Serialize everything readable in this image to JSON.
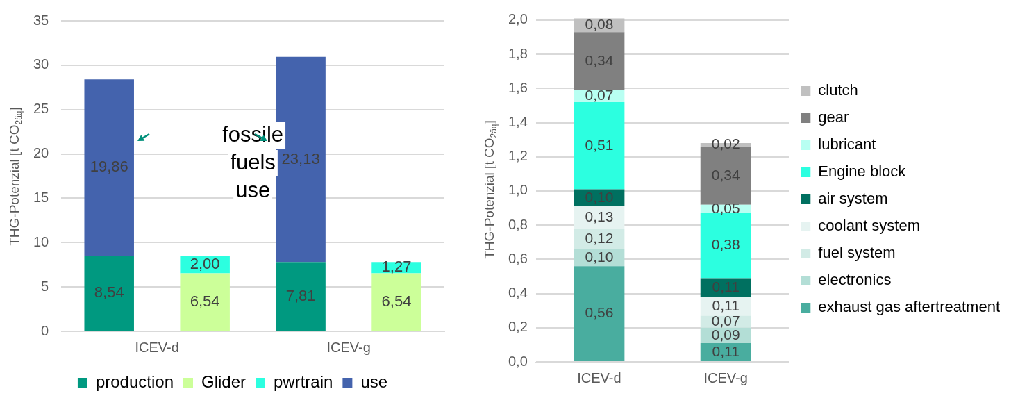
{
  "chart_data": [
    {
      "type": "bar",
      "ylabel": "THG-Potenzial [t CO$_{2äq}$]",
      "categories": [
        "ICEV-d",
        null,
        "ICEV-g",
        null
      ],
      "stacked": true,
      "series": [
        {
          "name": "production",
          "color": "#009980",
          "values": [
            8.54,
            null,
            7.81,
            null
          ],
          "value_labels": [
            "8,54",
            null,
            "7,81",
            null
          ]
        },
        {
          "name": "Glider",
          "color": "#ccff99",
          "values": [
            null,
            6.54,
            null,
            6.54
          ],
          "value_labels": [
            null,
            "6,54",
            null,
            "6,54"
          ]
        },
        {
          "name": "pwrtrain",
          "color": "#2cffe0",
          "values": [
            null,
            2.0,
            null,
            1.27
          ],
          "value_labels": [
            null,
            "2,00",
            null,
            "1,27"
          ]
        },
        {
          "name": "use",
          "color": "#4463ad",
          "values": [
            19.86,
            null,
            23.13,
            null
          ],
          "value_labels": [
            "19,86",
            null,
            "23,13",
            null
          ]
        }
      ],
      "ylim": [
        0,
        35
      ],
      "yticks": [
        0,
        5,
        10,
        15,
        20,
        25,
        30,
        35
      ],
      "grid": "y",
      "legend": "bottom",
      "annotations": [
        "fossile fuels use"
      ]
    },
    {
      "type": "bar",
      "ylabel": "THG-Potenzial [t CO$_{2äq}$]",
      "categories": [
        "ICEV-d",
        "ICEV-g"
      ],
      "stacked": true,
      "series": [
        {
          "name": "exhaust gas aftertreatment",
          "color": "#49ad9f",
          "values": [
            0.56,
            0.11
          ],
          "value_labels": [
            "0,56",
            "0,11"
          ]
        },
        {
          "name": "electronics",
          "color": "#b3ded6",
          "values": [
            0.1,
            0.09
          ],
          "value_labels": [
            "0,10",
            "0,09"
          ]
        },
        {
          "name": "fuel system",
          "color": "#d2ebe6",
          "values": [
            0.12,
            0.07
          ],
          "value_labels": [
            "0,12",
            "0,07"
          ]
        },
        {
          "name": "coolant system",
          "color": "#e6f3f1",
          "values": [
            0.13,
            0.11
          ],
          "value_labels": [
            "0,13",
            "0,11"
          ]
        },
        {
          "name": "air system",
          "color": "#007060",
          "values": [
            0.1,
            0.11
          ],
          "value_labels": [
            "0,10",
            "0,11"
          ]
        },
        {
          "name": "Engine block",
          "color": "#2cffe0",
          "values": [
            0.51,
            0.38
          ],
          "value_labels": [
            "0,51",
            "0,38"
          ]
        },
        {
          "name": "lubricant",
          "color": "#b8fff2",
          "values": [
            0.07,
            0.05
          ],
          "value_labels": [
            "0,07",
            "0,05"
          ]
        },
        {
          "name": "gear",
          "color": "#808080",
          "values": [
            0.34,
            0.34
          ],
          "value_labels": [
            "0,34",
            "0,34"
          ]
        },
        {
          "name": "clutch",
          "color": "#c0c0c0",
          "values": [
            0.08,
            0.02
          ],
          "value_labels": [
            "0,08",
            "0,02"
          ]
        }
      ],
      "ylim": [
        0,
        2.02
      ],
      "yticks": [
        {
          "value": 0,
          "label": "0,0"
        },
        {
          "value": 0.2,
          "label": "0,2"
        },
        {
          "value": 0.4,
          "label": "0,4"
        },
        {
          "value": 0.6,
          "label": "0,6"
        },
        {
          "value": 0.8,
          "label": "0,8"
        },
        {
          "value": 1,
          "label": "1,0"
        },
        {
          "value": 1.2,
          "label": "1,2"
        },
        {
          "value": 1.4,
          "label": "1,4"
        },
        {
          "value": 1.6,
          "label": "1,6"
        },
        {
          "value": 1.8,
          "label": "1,8"
        },
        {
          "value": 2,
          "label": "2,0"
        }
      ],
      "grid": "y",
      "legend": "right"
    }
  ]
}
